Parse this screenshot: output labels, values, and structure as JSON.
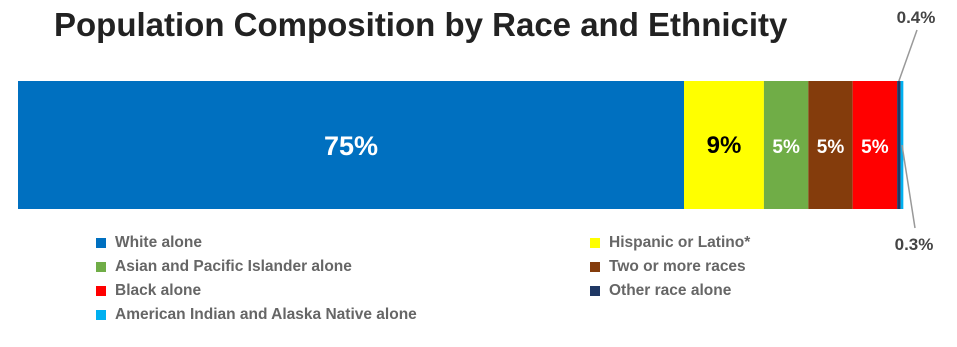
{
  "chart_data": {
    "type": "bar",
    "orientation": "horizontal-stacked",
    "title": "Population Composition by Race and Ethnicity",
    "series": [
      {
        "name": "White alone",
        "value": 75,
        "label": "75%",
        "color": "#0070C0",
        "label_color": "#ffffff"
      },
      {
        "name": "Hispanic or Latino*",
        "value": 9,
        "label": "9%",
        "color": "#FFFF00",
        "label_color": "#000000"
      },
      {
        "name": "Asian and Pacific Islander alone",
        "value": 5,
        "label": "5%",
        "color": "#70AD47",
        "label_color": "#ffffff"
      },
      {
        "name": "Two or more races",
        "value": 5,
        "label": "5%",
        "color": "#843C0C",
        "label_color": "#ffffff"
      },
      {
        "name": "Black alone",
        "value": 5,
        "label": "5%",
        "color": "#FF0000",
        "label_color": "#ffffff"
      },
      {
        "name": "Other race alone",
        "value": 0.4,
        "label": "0.4%",
        "color": "#1F3864",
        "label_color": "#444444",
        "label_position": "above"
      },
      {
        "name": "American Indian and Alaska Native alone",
        "value": 0.3,
        "label": "0.3%",
        "color": "#00B0F0",
        "label_color": "#444444",
        "label_position": "below"
      }
    ],
    "legend": {
      "placement": "bottom",
      "order": [
        "White alone",
        "Hispanic or Latino*",
        "Asian and Pacific Islander alone",
        "Two or more races",
        "Black alone",
        "Other race alone",
        "American Indian and Alaska Native alone"
      ]
    },
    "grid": false
  }
}
